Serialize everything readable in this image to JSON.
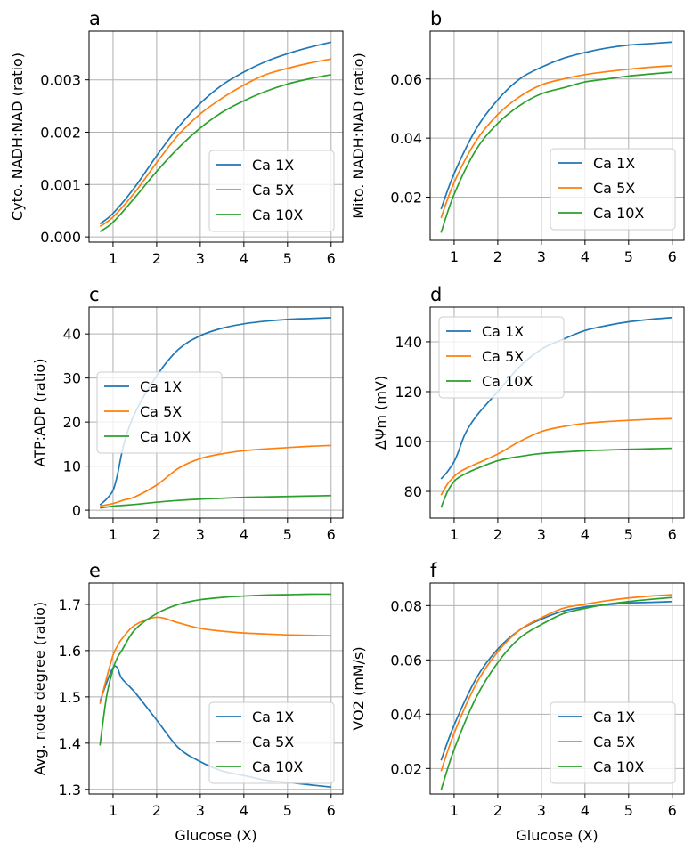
{
  "colors": {
    "Ca 1X": "#1f77b4",
    "Ca 5X": "#ff7f0e",
    "Ca 10X": "#2ca02c",
    "grid": "#b0b0b0"
  },
  "chart_data": [
    {
      "panel": "a",
      "type": "line",
      "xlabel": "",
      "ylabel": "Cyto. NADH:NAD (ratio)",
      "xlim": [
        0.45,
        6.27
      ],
      "ylim": [
        -0.0001,
        0.00393
      ],
      "grid": true,
      "legend": "lower right",
      "xticks": [
        "1",
        "2",
        "3",
        "4",
        "5",
        "6"
      ],
      "xtick_values": [
        1,
        2,
        3,
        4,
        5,
        6
      ],
      "yticks": [
        "0.000",
        "0.001",
        "0.002",
        "0.003"
      ],
      "ytick_values": [
        0,
        0.001,
        0.002,
        0.003
      ],
      "x": [
        0.7,
        1,
        1.5,
        2,
        2.5,
        3,
        3.5,
        4,
        4.5,
        5,
        5.5,
        6
      ],
      "series": [
        {
          "name": "Ca 1X",
          "values": [
            0.00025,
            0.00045,
            0.00095,
            0.00155,
            0.0021,
            0.00255,
            0.0029,
            0.00315,
            0.00335,
            0.0035,
            0.00362,
            0.00372
          ]
        },
        {
          "name": "Ca 5X",
          "values": [
            0.0002,
            0.00038,
            0.00085,
            0.00142,
            0.00195,
            0.00235,
            0.00265,
            0.0029,
            0.0031,
            0.00322,
            0.00332,
            0.0034
          ]
        },
        {
          "name": "Ca 10X",
          "values": [
            0.0001,
            0.00028,
            0.00075,
            0.00125,
            0.0017,
            0.00208,
            0.00238,
            0.0026,
            0.00278,
            0.00292,
            0.00302,
            0.0031
          ]
        }
      ]
    },
    {
      "panel": "b",
      "type": "line",
      "xlabel": "",
      "ylabel": "Mito. NADH:NAD (ratio)",
      "xlim": [
        0.45,
        6.27
      ],
      "ylim": [
        0.0054,
        0.0762
      ],
      "grid": true,
      "legend": "lower right",
      "xticks": [
        "1",
        "2",
        "3",
        "4",
        "5",
        "6"
      ],
      "xtick_values": [
        1,
        2,
        3,
        4,
        5,
        6
      ],
      "yticks": [
        "0.02",
        "0.04",
        "0.06"
      ],
      "ytick_values": [
        0.02,
        0.04,
        0.06
      ],
      "x": [
        0.7,
        1,
        1.5,
        2,
        2.5,
        3,
        3.5,
        4,
        4.5,
        5,
        5.5,
        6
      ],
      "series": [
        {
          "name": "Ca 1X",
          "values": [
            0.016,
            0.028,
            0.043,
            0.053,
            0.06,
            0.064,
            0.067,
            0.069,
            0.0705,
            0.0715,
            0.072,
            0.0725
          ]
        },
        {
          "name": "Ca 5X",
          "values": [
            0.013,
            0.025,
            0.039,
            0.048,
            0.054,
            0.058,
            0.06,
            0.0615,
            0.0625,
            0.0633,
            0.064,
            0.0645
          ]
        },
        {
          "name": "Ca 10X",
          "values": [
            0.008,
            0.021,
            0.036,
            0.045,
            0.051,
            0.055,
            0.057,
            0.059,
            0.06,
            0.061,
            0.0617,
            0.0623
          ]
        }
      ]
    },
    {
      "panel": "c",
      "type": "line",
      "xlabel": "",
      "ylabel": "ATP:ADP (ratio)",
      "xlim": [
        0.45,
        6.27
      ],
      "ylim": [
        -1.8,
        46.1
      ],
      "grid": true,
      "legend": "center left",
      "xticks": [
        "1",
        "2",
        "3",
        "4",
        "5",
        "6"
      ],
      "xtick_values": [
        1,
        2,
        3,
        4,
        5,
        6
      ],
      "yticks": [
        "0",
        "10",
        "20",
        "30",
        "40"
      ],
      "ytick_values": [
        0,
        10,
        20,
        30,
        40
      ],
      "x": [
        0.7,
        0.85,
        1,
        1.1,
        1.25,
        1.5,
        2,
        2.5,
        3,
        3.5,
        4,
        4.5,
        5,
        5.5,
        6
      ],
      "series": [
        {
          "name": "Ca 1X",
          "values": [
            1.2,
            2.5,
            4.5,
            8,
            15,
            22,
            30.5,
            36.5,
            39.6,
            41.3,
            42.3,
            42.9,
            43.3,
            43.5,
            43.7
          ]
        },
        {
          "name": "Ca 5X",
          "values": [
            0.9,
            1.2,
            1.5,
            1.8,
            2.3,
            3,
            5.7,
            9.5,
            11.7,
            12.8,
            13.5,
            13.9,
            14.2,
            14.5,
            14.7
          ]
        },
        {
          "name": "Ca 10X",
          "values": [
            0.5,
            0.7,
            0.9,
            1,
            1.1,
            1.3,
            1.8,
            2.2,
            2.5,
            2.7,
            2.9,
            3,
            3.1,
            3.2,
            3.3
          ]
        }
      ]
    },
    {
      "panel": "d",
      "type": "line",
      "xlabel": "",
      "ylabel": "ΔΨm (mV)",
      "xlim": [
        0.45,
        6.27
      ],
      "ylim": [
        69.3,
        153.9
      ],
      "grid": true,
      "legend": "upper left",
      "xticks": [
        "1",
        "2",
        "3",
        "4",
        "5",
        "6"
      ],
      "xtick_values": [
        1,
        2,
        3,
        4,
        5,
        6
      ],
      "yticks": [
        "80",
        "100",
        "120",
        "140"
      ],
      "ytick_values": [
        80,
        100,
        120,
        140
      ],
      "x": [
        0.7,
        0.85,
        1,
        1.1,
        1.25,
        1.5,
        2,
        2.5,
        3,
        3.5,
        4,
        4.5,
        5,
        5.5,
        6
      ],
      "series": [
        {
          "name": "Ca 1X",
          "values": [
            85,
            88,
            92,
            96,
            103,
            110,
            120,
            130,
            137,
            141,
            144.5,
            146.5,
            148,
            149,
            149.7
          ]
        },
        {
          "name": "Ca 5X",
          "values": [
            78.5,
            83,
            86,
            87.5,
            89,
            91,
            95,
            100,
            104,
            106,
            107.3,
            108,
            108.5,
            108.9,
            109.2
          ]
        },
        {
          "name": "Ca 10X",
          "values": [
            73.5,
            80,
            84,
            85.5,
            87,
            89,
            92.3,
            94,
            95.2,
            95.8,
            96.3,
            96.6,
            96.9,
            97.1,
            97.3
          ]
        }
      ]
    },
    {
      "panel": "e",
      "type": "line",
      "xlabel": "Glucose (X)",
      "ylabel": "Avg. node degree (ratio)",
      "xlim": [
        0.45,
        6.27
      ],
      "ylim": [
        1.29,
        1.746
      ],
      "grid": true,
      "legend": "lower right",
      "xticks": [
        "1",
        "2",
        "3",
        "4",
        "5",
        "6"
      ],
      "xtick_values": [
        1,
        2,
        3,
        4,
        5,
        6
      ],
      "yticks": [
        "1.3",
        "1.4",
        "1.5",
        "1.6",
        "1.7"
      ],
      "ytick_values": [
        1.3,
        1.4,
        1.5,
        1.6,
        1.7
      ],
      "x": [
        0.7,
        0.85,
        1,
        1.1,
        1.2,
        1.5,
        2,
        2.5,
        3,
        3.5,
        4,
        4.5,
        5,
        5.5,
        6
      ],
      "series": [
        {
          "name": "Ca 1X",
          "values": [
            1.49,
            1.53,
            1.563,
            1.563,
            1.54,
            1.51,
            1.45,
            1.39,
            1.36,
            1.34,
            1.33,
            1.32,
            1.315,
            1.31,
            1.305
          ]
        },
        {
          "name": "Ca 5X",
          "values": [
            1.485,
            1.54,
            1.59,
            1.61,
            1.625,
            1.655,
            1.672,
            1.66,
            1.648,
            1.642,
            1.638,
            1.636,
            1.634,
            1.633,
            1.632
          ]
        },
        {
          "name": "Ca 10X",
          "values": [
            1.395,
            1.5,
            1.56,
            1.585,
            1.6,
            1.645,
            1.68,
            1.7,
            1.71,
            1.715,
            1.718,
            1.72,
            1.721,
            1.722,
            1.722
          ]
        }
      ]
    },
    {
      "panel": "f",
      "type": "line",
      "xlabel": "Glucose (X)",
      "ylabel": "VO2 (mM/s)",
      "xlim": [
        0.45,
        6.27
      ],
      "ylim": [
        0.0106,
        0.0883
      ],
      "grid": true,
      "legend": "lower right",
      "xticks": [
        "1",
        "2",
        "3",
        "4",
        "5",
        "6"
      ],
      "xtick_values": [
        1,
        2,
        3,
        4,
        5,
        6
      ],
      "yticks": [
        "0.02",
        "0.04",
        "0.06",
        "0.08"
      ],
      "ytick_values": [
        0.02,
        0.04,
        0.06,
        0.08
      ],
      "x": [
        0.7,
        1,
        1.5,
        2,
        2.5,
        3,
        3.5,
        4,
        4.5,
        5,
        5.5,
        6
      ],
      "series": [
        {
          "name": "Ca 1X",
          "values": [
            0.023,
            0.036,
            0.053,
            0.064,
            0.071,
            0.075,
            0.078,
            0.0795,
            0.0803,
            0.081,
            0.0812,
            0.0815
          ]
        },
        {
          "name": "Ca 5X",
          "values": [
            0.019,
            0.033,
            0.051,
            0.063,
            0.071,
            0.0755,
            0.079,
            0.0805,
            0.0818,
            0.0828,
            0.0835,
            0.084
          ]
        },
        {
          "name": "Ca 10X",
          "values": [
            0.012,
            0.027,
            0.046,
            0.059,
            0.068,
            0.073,
            0.077,
            0.079,
            0.0805,
            0.0815,
            0.0823,
            0.083
          ]
        }
      ]
    }
  ]
}
